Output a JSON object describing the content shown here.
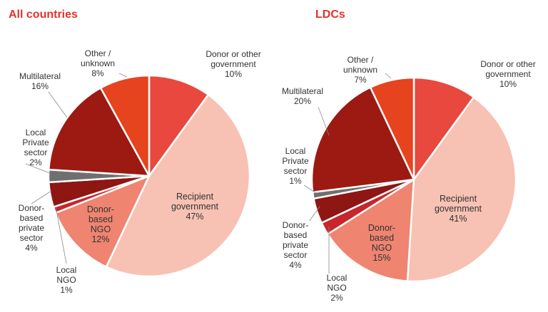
{
  "chart_data": [
    {
      "type": "pie",
      "title": "All countries",
      "categories": [
        "Donor or other government",
        "Recipient government",
        "Donor-based NGO",
        "Local NGO",
        "Donor-based private sector",
        "Local Private sector",
        "Multilateral",
        "Other / unknown"
      ],
      "values": [
        10,
        47,
        12,
        1,
        4,
        2,
        16,
        8
      ],
      "colors": [
        "#e8483d",
        "#f7c1b3",
        "#ef8471",
        "#c8262d",
        "#8e1613",
        "#6f6f6f",
        "#9c1a12",
        "#e6431f"
      ],
      "labels": [
        {
          "lines": [
            "Donor or other",
            "government",
            "10%"
          ]
        },
        {
          "lines": [
            "Recipient",
            "government",
            "47%"
          ]
        },
        {
          "lines": [
            "Donor-",
            "based",
            "NGO",
            "12%"
          ]
        },
        {
          "lines": [
            "Local",
            "NGO",
            "1%"
          ]
        },
        {
          "lines": [
            "Donor-",
            "based",
            "private",
            "sector",
            "4%"
          ]
        },
        {
          "lines": [
            "Local",
            "Private",
            "sector",
            "2%"
          ]
        },
        {
          "lines": [
            "Multilateral",
            "16%"
          ]
        },
        {
          "lines": [
            "Other /",
            "unknown",
            "8%"
          ]
        }
      ]
    },
    {
      "type": "pie",
      "title": "LDCs",
      "categories": [
        "Donor or other government",
        "Recipient government",
        "Donor-based NGO",
        "Local NGO",
        "Donor-based private sector",
        "Local Private sector",
        "Multilateral",
        "Other / unknown"
      ],
      "values": [
        10,
        41,
        15,
        2,
        4,
        1,
        20,
        7
      ],
      "colors": [
        "#e8483d",
        "#f7c1b3",
        "#ef8471",
        "#c8262d",
        "#8e1613",
        "#6f6f6f",
        "#9c1a12",
        "#e6431f"
      ],
      "labels": [
        {
          "lines": [
            "Donor or other",
            "government",
            "10%"
          ]
        },
        {
          "lines": [
            "Recipient",
            "government",
            "41%"
          ]
        },
        {
          "lines": [
            "Donor-",
            "based",
            "NGO",
            "15%"
          ]
        },
        {
          "lines": [
            "Local",
            "NGO",
            "2%"
          ]
        },
        {
          "lines": [
            "Donor-",
            "based",
            "private",
            "sector",
            "4%"
          ]
        },
        {
          "lines": [
            "Local",
            "Private",
            "sector",
            "1%"
          ]
        },
        {
          "lines": [
            "Multilateral",
            "20%"
          ]
        },
        {
          "lines": [
            "Other /",
            "unknown",
            "7%"
          ]
        }
      ]
    }
  ]
}
